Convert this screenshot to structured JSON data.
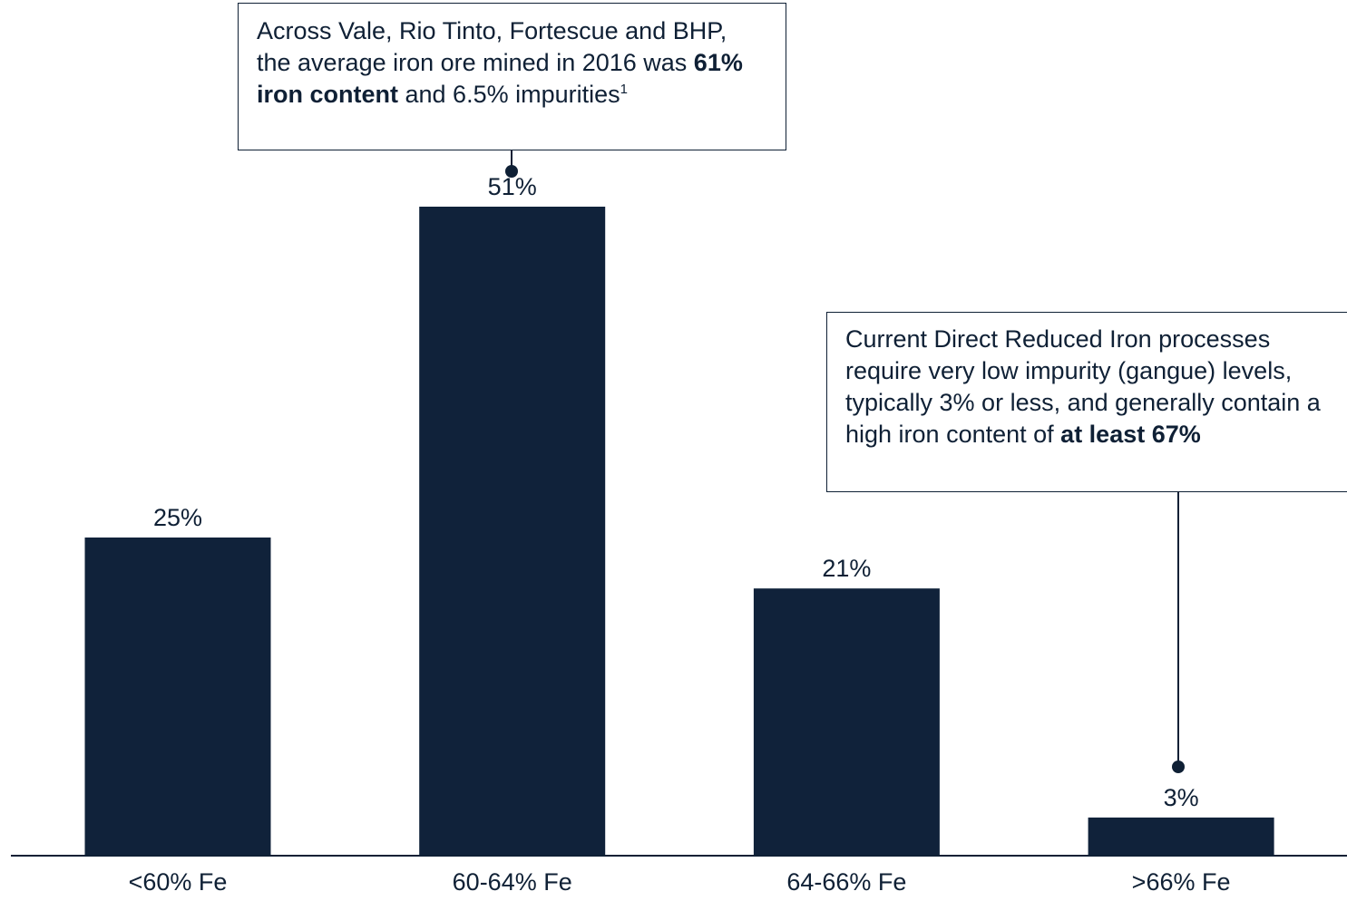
{
  "chart_data": {
    "type": "bar",
    "categories": [
      "<60% Fe",
      "60-64% Fe",
      "64-66% Fe",
      ">66% Fe"
    ],
    "values": [
      25,
      51,
      21,
      3
    ],
    "value_labels": [
      "25%",
      "51%",
      "21%",
      "3%"
    ],
    "unit": "%",
    "ylim": [
      0,
      55
    ],
    "title": "",
    "xlabel": "",
    "ylabel": "",
    "grid": false,
    "legend": "none",
    "bar_color": "#10223a"
  },
  "annotations": {
    "left": {
      "target_category": "60-64% Fe",
      "text_before": "Across Vale, Rio Tinto, Fortescue and BHP, the average iron ore mined in 2016 was ",
      "bold": "61% iron content",
      "text_after": " and 6.5% impurities",
      "footnote": "1"
    },
    "right": {
      "target_category": ">66% Fe",
      "text_before": "Current Direct Reduced Iron processes require very low impurity (gangue) levels, typically 3% or less, and generally contain a high iron content of ",
      "bold": "at least 67%",
      "text_after": ""
    }
  },
  "colors": {
    "bar": "#10223a",
    "text": "#0f2035",
    "axis": "#0f2035",
    "background": "#ffffff"
  }
}
